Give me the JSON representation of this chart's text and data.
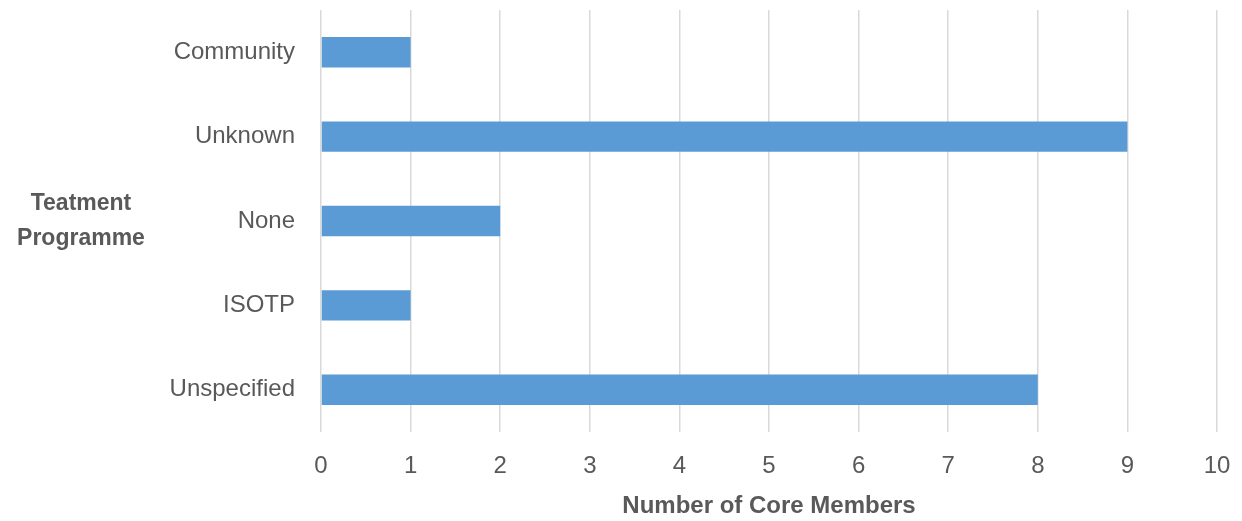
{
  "chart_data": {
    "type": "bar",
    "orientation": "horizontal",
    "categories": [
      "Community",
      "Unknown",
      "None",
      "ISOTP",
      "Unspecified"
    ],
    "values": [
      1,
      9,
      2,
      1,
      8
    ],
    "color": "#5b9bd5",
    "xlabel": "Number of Core Members",
    "ylabel": "Teatment Programme",
    "xlim": [
      0,
      10
    ],
    "xticks": [
      0,
      1,
      2,
      3,
      4,
      5,
      6,
      7,
      8,
      9,
      10
    ],
    "grid": "x",
    "legend": false
  }
}
